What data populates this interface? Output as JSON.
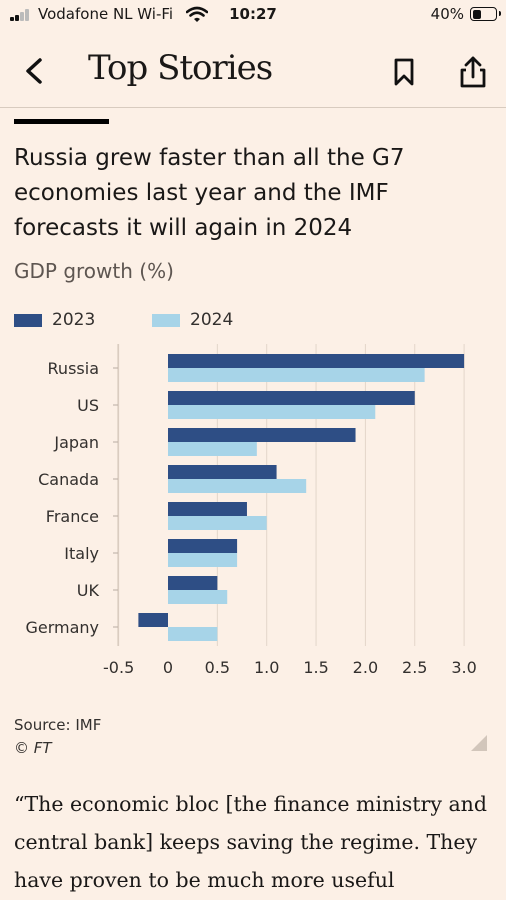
{
  "status_bar": {
    "carrier": "Vodafone NL Wi-Fi",
    "time": "10:27",
    "battery": "40%",
    "battery_level": 0.4
  },
  "nav": {
    "title": "Top Stories",
    "back_icon": "chevron-left-icon",
    "bookmark_icon": "bookmark-icon",
    "share_icon": "share-icon"
  },
  "article": {
    "headline": "Russia grew faster than all the G7 economies last year and the IMF forecasts it will again in 2024",
    "subtitle": "GDP growth (%)",
    "source": "Source: IMF",
    "copyright": "© FT",
    "quote": "“The economic bloc [the finance ministry and central bank] keeps saving the regime. They have proven to be much more useful"
  },
  "colors": {
    "background": "#fcf0e6",
    "series_2023": "#2e4e85",
    "series_2024": "#a7d4e8"
  },
  "chart_data": {
    "type": "bar",
    "orientation": "horizontal",
    "title": "Russia grew faster than all the G7 economies last year and the IMF forecasts it will again in 2024",
    "subtitle": "GDP growth (%)",
    "categories": [
      "Russia",
      "US",
      "Japan",
      "Canada",
      "France",
      "Italy",
      "UK",
      "Germany"
    ],
    "series": [
      {
        "name": "2023",
        "values": [
          3.0,
          2.5,
          1.9,
          1.1,
          0.8,
          0.7,
          0.5,
          -0.3
        ]
      },
      {
        "name": "2024",
        "values": [
          2.6,
          2.1,
          0.9,
          1.4,
          1.0,
          0.7,
          0.6,
          0.5
        ]
      }
    ],
    "xlim": [
      -0.5,
      3.0
    ],
    "xticks": [
      "-0.5",
      "0",
      "0.5",
      "1.0",
      "1.5",
      "2.0",
      "2.5",
      "3.0"
    ],
    "xtick_values": [
      -0.5,
      0,
      0.5,
      1.0,
      1.5,
      2.0,
      2.5,
      3.0
    ],
    "grid": "vertical",
    "legend": "top-left"
  }
}
